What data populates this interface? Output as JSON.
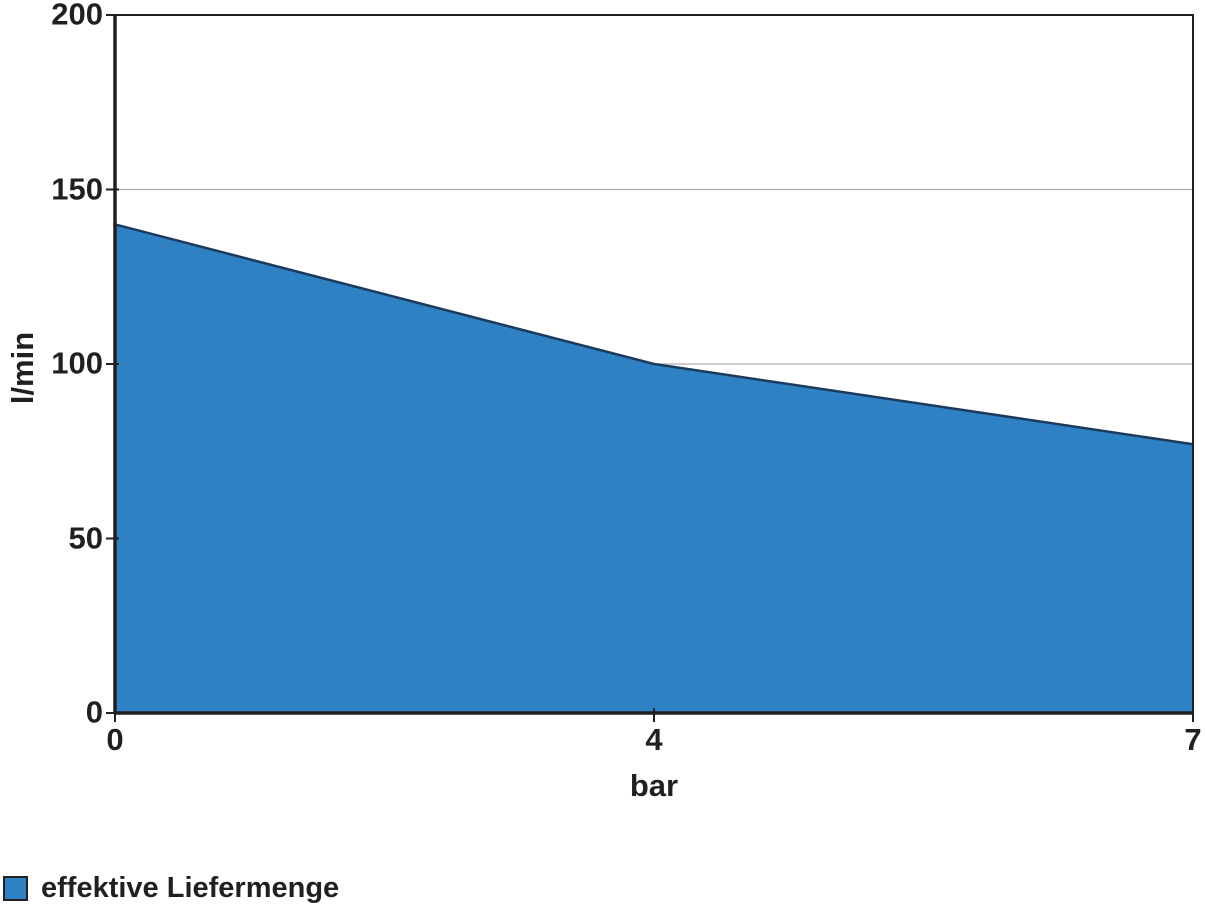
{
  "chart_data": {
    "type": "area",
    "categories": [
      "0",
      "4",
      "7"
    ],
    "values": [
      140,
      100,
      77
    ],
    "series": [
      {
        "name": "effektive Liefermenge",
        "values": [
          140,
          100,
          77
        ]
      }
    ],
    "title": "",
    "xlabel": "bar",
    "ylabel": "l/min",
    "ylim": [
      0,
      200
    ],
    "yticks": [
      0,
      50,
      100,
      150,
      200
    ],
    "xticks": [
      "0",
      "4",
      "7"
    ],
    "x_axis_type": "category-equal-spacing",
    "grid": "horizontal",
    "legend_position": "bottom-left",
    "fill_color": "#2E82C4",
    "line_color": "#1B3B5E",
    "grid_color": "#ADADAD",
    "axis_color": "#231F20",
    "text_color": "#231F20",
    "background_color": "#FFFFFF"
  },
  "legend": {
    "label": "effektive Liefermenge",
    "swatch_color": "#2E82C4",
    "swatch_border_color": "#231F20"
  }
}
